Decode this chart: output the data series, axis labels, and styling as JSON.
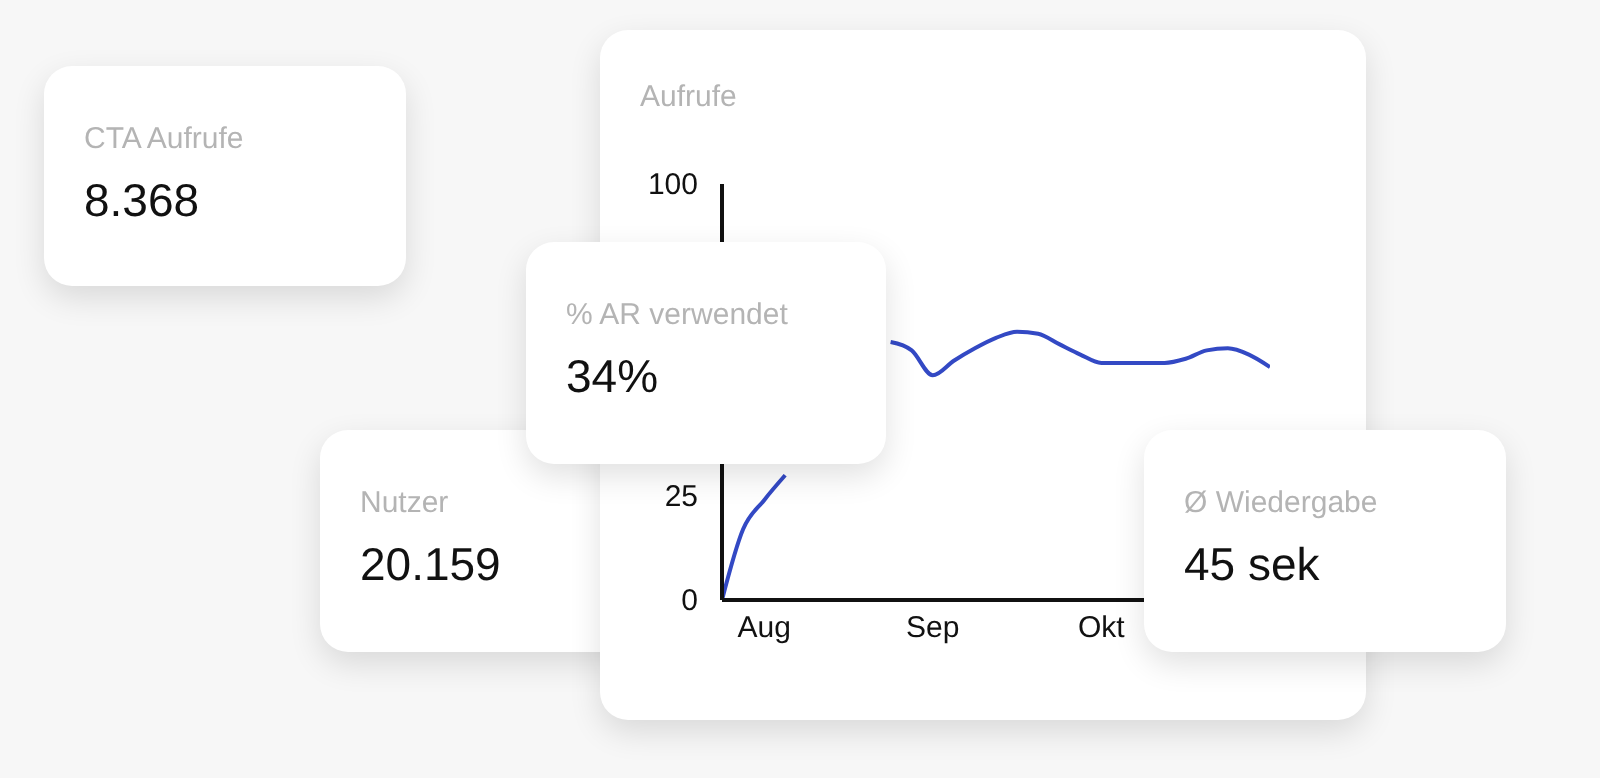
{
  "chart_data": [
    {
      "type": "other",
      "title": "CTA Aufrufe",
      "annotations": [
        "8.368"
      ]
    },
    {
      "type": "line",
      "title": "Aufrufe",
      "categories": [
        null,
        null,
        "Aug",
        null,
        null,
        null,
        null,
        null,
        null,
        null,
        "Sep",
        null,
        null,
        null,
        null,
        null,
        null,
        null,
        "Okt",
        null,
        null,
        null,
        null,
        null,
        null,
        null,
        null
      ],
      "series": [
        {
          "color": "#3349c4",
          "values": [
            0,
            17,
            24,
            30,
            null,
            null,
            null,
            null,
            62,
            60,
            54,
            57.5,
            60.5,
            63,
            64.5,
            64,
            61.5,
            59,
            57,
            57,
            57,
            57,
            58,
            60,
            60.5,
            59,
            56
          ]
        }
      ],
      "ylim": [
        0,
        100
      ],
      "yticks": [
        0,
        25,
        100
      ],
      "grid": false,
      "legend": false,
      "marker": "none",
      "line_style": "solid"
    },
    {
      "type": "other",
      "title": "% AR verwendet",
      "annotations": [
        "34%"
      ]
    },
    {
      "type": "other",
      "title": "Nutzer",
      "annotations": [
        "20.159"
      ]
    },
    {
      "type": "other",
      "title": "Ø Wiedergabe",
      "annotations": [
        "45 sek"
      ]
    }
  ]
}
